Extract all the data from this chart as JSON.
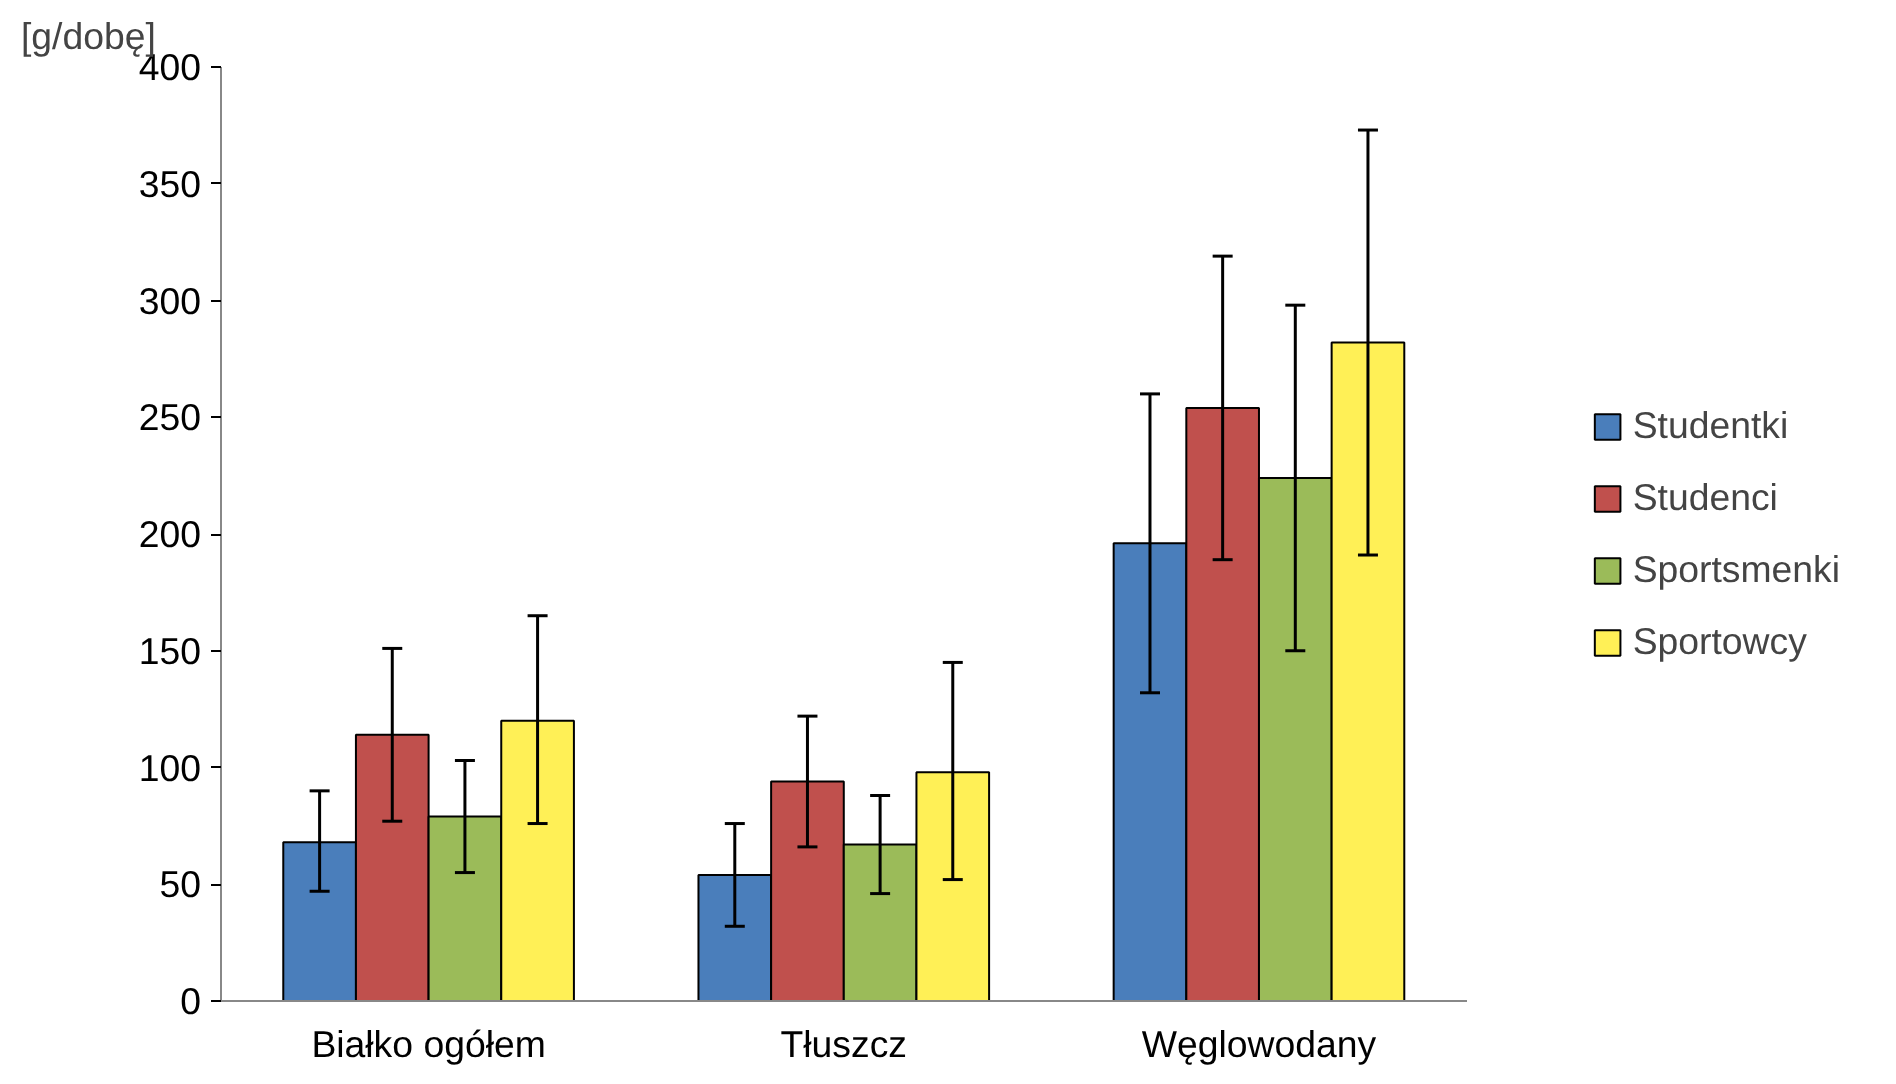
{
  "chart_data": {
    "type": "bar",
    "ylabel": "[g/dobę]",
    "categories": [
      "Białko ogółem",
      "Tłuszcz",
      "Węglowodany"
    ],
    "ylim": [
      0,
      400
    ],
    "yticks": [
      0,
      50,
      100,
      150,
      200,
      250,
      300,
      350,
      400
    ],
    "grid": false,
    "legend": "right",
    "series": [
      {
        "name": "Studentki",
        "color": "#4a7ebb",
        "values": [
          68,
          54,
          196
        ],
        "errors": [
          [
            47,
            90
          ],
          [
            32,
            76
          ],
          [
            132,
            260
          ]
        ]
      },
      {
        "name": "Studenci",
        "color": "#c0504d",
        "values": [
          114,
          94,
          254
        ],
        "errors": [
          [
            77,
            151
          ],
          [
            66,
            122
          ],
          [
            189,
            319
          ]
        ]
      },
      {
        "name": "Sportsmenki",
        "color": "#9bbb59",
        "values": [
          79,
          67,
          224
        ],
        "errors": [
          [
            55,
            103
          ],
          [
            46,
            88
          ],
          [
            150,
            298
          ]
        ]
      },
      {
        "name": "Sportowcy",
        "color": "#fff056",
        "values": [
          120,
          98,
          282
        ],
        "errors": [
          [
            76,
            165
          ],
          [
            52,
            145
          ],
          [
            191,
            373
          ]
        ]
      }
    ]
  }
}
